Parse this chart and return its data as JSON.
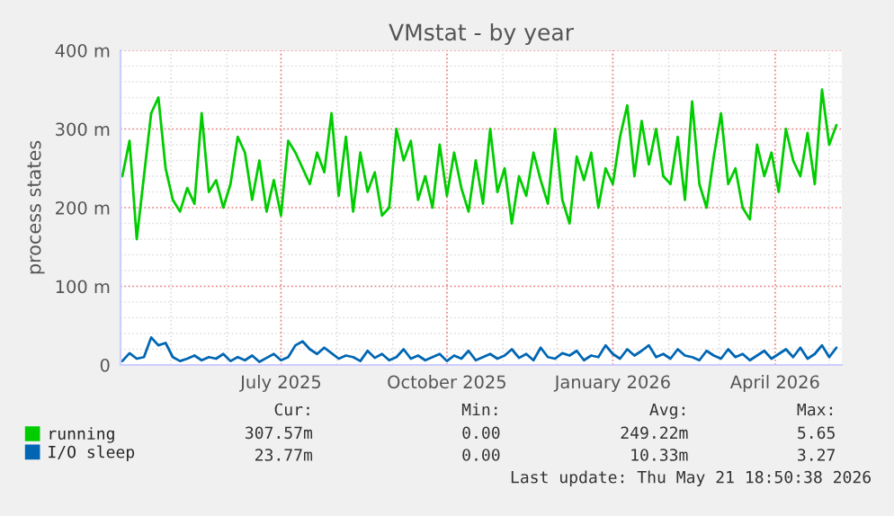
{
  "chart_data": {
    "type": "line",
    "title": "VMstat - by year",
    "ylabel": "process states",
    "x": [
      "2025-04-04",
      "2025-04-08",
      "2025-04-12",
      "2025-04-16",
      "2025-04-20",
      "2025-04-24",
      "2025-04-28",
      "2025-05-02",
      "2025-05-06",
      "2025-05-10",
      "2025-05-14",
      "2025-05-18",
      "2025-05-22",
      "2025-05-26",
      "2025-05-30",
      "2025-06-03",
      "2025-06-07",
      "2025-06-11",
      "2025-06-15",
      "2025-06-19",
      "2025-06-23",
      "2025-06-27",
      "2025-07-01",
      "2025-07-05",
      "2025-07-09",
      "2025-07-13",
      "2025-07-17",
      "2025-07-21",
      "2025-07-25",
      "2025-07-29",
      "2025-08-02",
      "2025-08-06",
      "2025-08-10",
      "2025-08-14",
      "2025-08-18",
      "2025-08-22",
      "2025-08-26",
      "2025-08-30",
      "2025-09-03",
      "2025-09-07",
      "2025-09-11",
      "2025-09-15",
      "2025-09-19",
      "2025-09-23",
      "2025-09-27",
      "2025-10-01",
      "2025-10-05",
      "2025-10-09",
      "2025-10-13",
      "2025-10-17",
      "2025-10-21",
      "2025-10-25",
      "2025-10-29",
      "2025-11-02",
      "2025-11-06",
      "2025-11-10",
      "2025-11-14",
      "2025-11-18",
      "2025-11-22",
      "2025-11-26",
      "2025-11-30",
      "2025-12-04",
      "2025-12-08",
      "2025-12-12",
      "2025-12-16",
      "2025-12-20",
      "2025-12-24",
      "2025-12-28",
      "2026-01-01",
      "2026-01-05",
      "2026-01-09",
      "2026-01-13",
      "2026-01-17",
      "2026-01-21",
      "2026-01-25",
      "2026-01-29",
      "2026-02-02",
      "2026-02-06",
      "2026-02-10",
      "2026-02-14",
      "2026-02-18",
      "2026-02-22",
      "2026-02-26",
      "2026-03-02",
      "2026-03-06",
      "2026-03-10",
      "2026-03-14",
      "2026-03-18",
      "2026-03-22",
      "2026-03-26",
      "2026-03-30",
      "2026-04-03",
      "2026-04-07",
      "2026-04-11",
      "2026-04-15",
      "2026-04-19",
      "2026-04-23",
      "2026-04-27",
      "2026-05-01",
      "2026-05-05"
    ],
    "series": [
      {
        "name": "running",
        "color": "#00cc00",
        "values": [
          240,
          285,
          160,
          240,
          320,
          340,
          250,
          210,
          195,
          225,
          205,
          320,
          220,
          235,
          200,
          230,
          290,
          270,
          210,
          260,
          195,
          235,
          190,
          285,
          270,
          250,
          230,
          270,
          245,
          320,
          215,
          290,
          195,
          270,
          220,
          245,
          190,
          200,
          300,
          260,
          285,
          210,
          240,
          200,
          280,
          215,
          270,
          225,
          195,
          260,
          205,
          300,
          220,
          250,
          180,
          240,
          215,
          270,
          235,
          205,
          300,
          210,
          180,
          265,
          235,
          270,
          200,
          250,
          230,
          290,
          330,
          240,
          310,
          255,
          300,
          240,
          230,
          290,
          210,
          335,
          230,
          200,
          265,
          320,
          230,
          250,
          200,
          185,
          280,
          240,
          270,
          220,
          300,
          260,
          240,
          295,
          230,
          350,
          280,
          305
        ]
      },
      {
        "name": "I/O sleep",
        "color": "#0066b3",
        "values": [
          5,
          15,
          8,
          10,
          35,
          25,
          28,
          10,
          5,
          8,
          12,
          6,
          10,
          8,
          14,
          5,
          10,
          6,
          12,
          4,
          9,
          14,
          6,
          10,
          25,
          30,
          20,
          14,
          22,
          15,
          8,
          12,
          10,
          5,
          18,
          9,
          14,
          6,
          10,
          20,
          8,
          12,
          6,
          10,
          14,
          5,
          12,
          8,
          18,
          6,
          10,
          14,
          8,
          12,
          20,
          9,
          14,
          6,
          22,
          10,
          8,
          15,
          12,
          18,
          6,
          12,
          10,
          25,
          14,
          8,
          20,
          12,
          18,
          25,
          10,
          14,
          8,
          20,
          12,
          10,
          6,
          18,
          12,
          8,
          20,
          10,
          14,
          6,
          12,
          18,
          8,
          14,
          20,
          10,
          22,
          8,
          14,
          25,
          10,
          22
        ]
      }
    ],
    "xlim": [
      "2025-04-03",
      "2026-05-08"
    ],
    "xticks": [
      {
        "value": "2025-07-01",
        "label": "July 2025"
      },
      {
        "value": "2025-10-01",
        "label": "October 2025"
      },
      {
        "value": "2026-01-01",
        "label": "January 2026"
      },
      {
        "value": "2026-04-01",
        "label": "April 2026"
      }
    ],
    "ylim": [
      0,
      400
    ],
    "yticks": [
      {
        "value": 0,
        "label": "0"
      },
      {
        "value": 100,
        "label": "100 m"
      },
      {
        "value": 200,
        "label": "200 m"
      },
      {
        "value": 300,
        "label": "300 m"
      },
      {
        "value": 400,
        "label": "400 m"
      }
    ],
    "grid": true,
    "legend": "bottom",
    "marker": "none",
    "line_style": "solid",
    "annotations": [
      "Cur:",
      "Min:",
      "Avg:",
      "Max:",
      "307.57m",
      "0.00",
      "249.22m",
      "5.65",
      "23.77m",
      "0.00",
      "10.33m",
      "3.27",
      "Last update: Thu May 21 18:50:38 2026"
    ]
  }
}
